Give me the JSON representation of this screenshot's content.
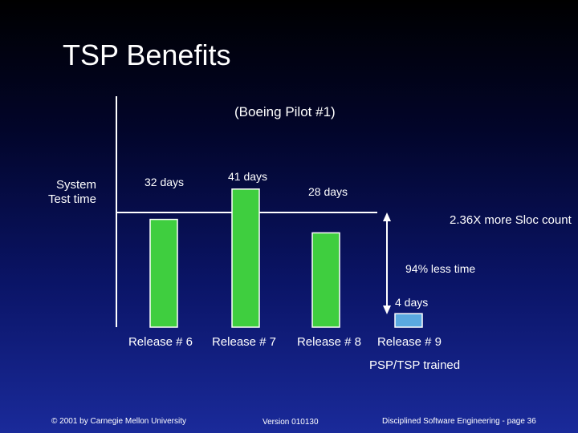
{
  "slide": {
    "title": "TSP Benefits"
  },
  "footer": {
    "copyright": "© 2001 by Carnegie Mellon University",
    "version": "Version 010130",
    "course_page": "Disciplined Software Engineering - page 36"
  },
  "colors": {
    "bar_fill": "#3fce3f",
    "bar_last_fill": "#5aa9e0",
    "axis": "#ffffff"
  },
  "chart_data": {
    "type": "bar",
    "title": "(Boeing Pilot #1)",
    "ylabel": "System Test time",
    "xlabel": "",
    "categories": [
      "Release # 6",
      "Release # 7",
      "Release # 8",
      "Release # 9"
    ],
    "values": [
      32,
      41,
      28,
      4
    ],
    "value_labels": [
      "32 days",
      "41 days",
      "28 days",
      "4 days"
    ],
    "ylim": [
      0,
      41
    ],
    "annotations": {
      "sloc": "2.36X more Sloc count",
      "reduction": "94% less time",
      "trained": "PSP/TSP trained"
    },
    "grid": false,
    "legend": "none"
  }
}
